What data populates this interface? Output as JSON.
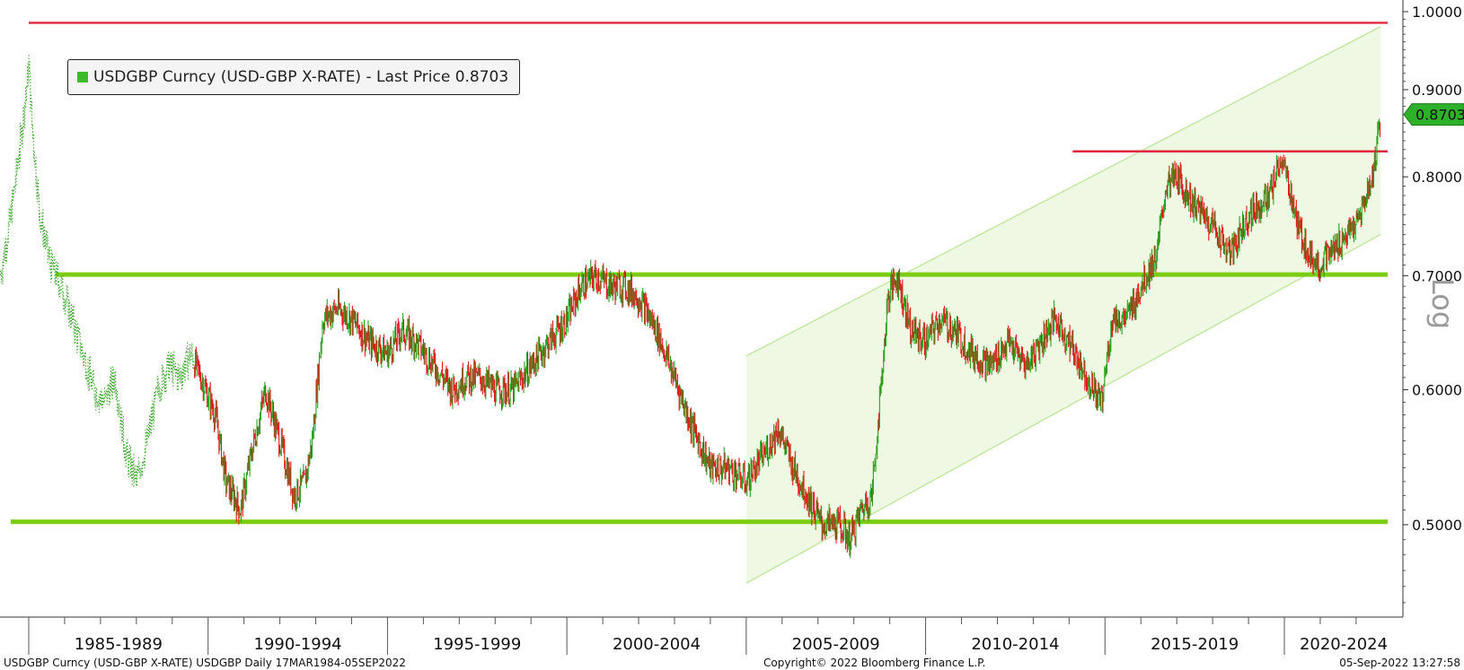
{
  "legend": {
    "label": "USDGBP Curncy (USD-GBP X-RATE) - Last Price 0.8703",
    "swatch_color": "#3dbb2a"
  },
  "footer": {
    "left": "USDGBP Curncy (USD-GBP X-RATE) USDGBP  Daily 17MAR1984-05SEP2022",
    "center": "Copyright© 2022 Bloomberg Finance L.P.",
    "right": "05-Sep-2022 13:27:58"
  },
  "colors": {
    "up": "#2f9e1f",
    "down": "#e01818",
    "support": "#7ccc12",
    "resistance": "#e0283c",
    "channel_fill": "#eef8e2",
    "channel_line": "#c2e6a0",
    "last_price_tag": "#2fb02a"
  },
  "chart_data": {
    "type": "line",
    "title": "",
    "xlabel": "",
    "ylabel": "Log",
    "y_scale": "log",
    "ylim": [
      0.44,
      1.02
    ],
    "x_start_year": 1984.21,
    "x_end_year": 2022.68,
    "x_axis_labels": [
      "1985-1989",
      "1990-1994",
      "1995-1999",
      "2000-2004",
      "2005-2009",
      "2010-2014",
      "2015-2019",
      "2020-2024"
    ],
    "y_axis_ticks": [
      "1.0000",
      "0.9000",
      "0.8000",
      "0.7000",
      "0.6000",
      "0.5000"
    ],
    "last_price": "0.8703",
    "series": [
      {
        "name": "USDGBP Curncy (USD-GBP X-RATE) - Last Price",
        "x": [
          1984.21,
          1984.5,
          1984.8,
          1985.0,
          1985.1,
          1985.3,
          1985.6,
          1985.9,
          1986.2,
          1986.5,
          1986.8,
          1987.1,
          1987.4,
          1987.7,
          1988.0,
          1988.3,
          1988.6,
          1988.9,
          1989.2,
          1989.5,
          1989.8,
          1990.2,
          1990.5,
          1990.9,
          1991.2,
          1991.6,
          1992.0,
          1992.4,
          1992.7,
          1992.9,
          1993.2,
          1993.6,
          1994.0,
          1994.5,
          1995.0,
          1995.4,
          1995.8,
          1996.3,
          1996.8,
          1997.2,
          1997.6,
          1998.0,
          1998.5,
          1999.0,
          1999.5,
          2000.0,
          2000.4,
          2000.8,
          2001.2,
          2001.6,
          2002.0,
          2002.5,
          2003.0,
          2003.5,
          2004.0,
          2004.5,
          2005.0,
          2005.5,
          2005.9,
          2006.3,
          2006.7,
          2007.1,
          2007.6,
          2007.9,
          2008.2,
          2008.5,
          2008.75,
          2008.95,
          2009.2,
          2009.6,
          2010.0,
          2010.4,
          2010.8,
          2011.3,
          2011.8,
          2012.3,
          2012.8,
          2013.2,
          2013.6,
          2014.0,
          2014.5,
          2014.9,
          2015.2,
          2015.6,
          2016.0,
          2016.45,
          2016.7,
          2017.0,
          2017.5,
          2018.0,
          2018.5,
          2019.0,
          2019.6,
          2019.9,
          2020.2,
          2020.35,
          2020.7,
          2021.0,
          2021.5,
          2022.0,
          2022.3,
          2022.5,
          2022.68
        ],
        "values": [
          0.7,
          0.76,
          0.85,
          0.93,
          0.85,
          0.76,
          0.71,
          0.69,
          0.66,
          0.63,
          0.6,
          0.59,
          0.61,
          0.55,
          0.53,
          0.56,
          0.6,
          0.62,
          0.61,
          0.63,
          0.61,
          0.58,
          0.53,
          0.51,
          0.55,
          0.6,
          0.56,
          0.52,
          0.53,
          0.56,
          0.66,
          0.67,
          0.66,
          0.64,
          0.63,
          0.65,
          0.64,
          0.62,
          0.6,
          0.61,
          0.61,
          0.6,
          0.6,
          0.62,
          0.64,
          0.66,
          0.69,
          0.7,
          0.69,
          0.69,
          0.68,
          0.65,
          0.61,
          0.57,
          0.54,
          0.54,
          0.53,
          0.55,
          0.57,
          0.54,
          0.52,
          0.5,
          0.5,
          0.49,
          0.51,
          0.52,
          0.6,
          0.68,
          0.7,
          0.65,
          0.64,
          0.66,
          0.65,
          0.63,
          0.62,
          0.64,
          0.62,
          0.64,
          0.66,
          0.64,
          0.61,
          0.59,
          0.66,
          0.66,
          0.69,
          0.72,
          0.79,
          0.8,
          0.77,
          0.75,
          0.72,
          0.76,
          0.78,
          0.82,
          0.78,
          0.75,
          0.72,
          0.71,
          0.73,
          0.75,
          0.78,
          0.81,
          0.8703
        ]
      }
    ],
    "horizontal_lines": [
      {
        "role": "resistance",
        "value": 0.985,
        "x_from": 1984.21,
        "x_to": 2022.68
      },
      {
        "role": "resistance",
        "value": 0.828,
        "x_from": 2014.1,
        "x_to": 2022.68
      },
      {
        "role": "support",
        "value": 0.701,
        "x_from": 1984.21,
        "x_to": 2022.68
      },
      {
        "role": "support",
        "value": 0.502,
        "x_from": 1984.21,
        "x_to": 2022.68
      }
    ],
    "channel": {
      "x_from": 2005.0,
      "x_to": 2022.68,
      "upper": [
        0.628,
        0.98
      ],
      "lower": [
        0.462,
        0.74
      ]
    },
    "grid": false,
    "legend_position": "top-left"
  }
}
